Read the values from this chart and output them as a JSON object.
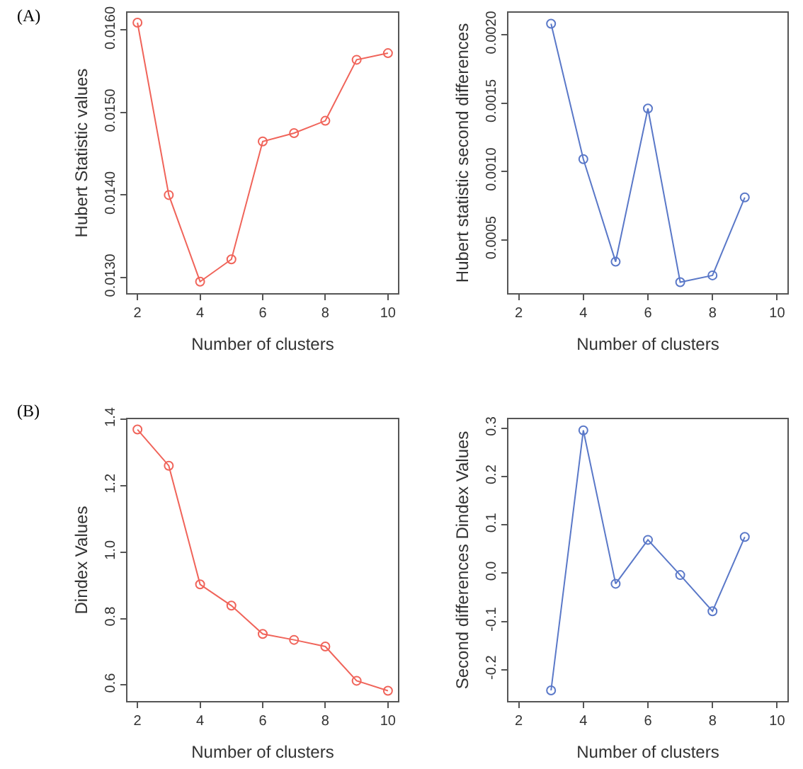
{
  "chart_data": [
    {
      "type": "line",
      "annotations": [
        "(A)"
      ],
      "xlabel": "Number of clusters",
      "ylabel": "Hubert Statistic values",
      "x": [
        2,
        3,
        4,
        5,
        6,
        7,
        8,
        9,
        10
      ],
      "xlim": [
        1.68,
        10.32
      ],
      "xticks": [
        2,
        4,
        6,
        8,
        10
      ],
      "ylim": [
        0.01281,
        0.01621
      ],
      "yticks": [
        {
          "value": 0.013,
          "label": "0.0130"
        },
        {
          "value": 0.014,
          "label": "0.0140"
        },
        {
          "value": 0.015,
          "label": "0.0150"
        },
        {
          "value": 0.016,
          "label": "0.0160"
        }
      ],
      "marker": "circle",
      "line_style": "solid",
      "grid": false,
      "series": [
        {
          "color": "#f0645a",
          "values": [
            0.01609,
            0.014,
            0.01295,
            0.01322,
            0.01465,
            0.01475,
            0.0149,
            0.01564,
            0.01572
          ]
        }
      ]
    },
    {
      "type": "line",
      "xlabel": "Number of clusters",
      "ylabel": "Hubert statistic second differences",
      "x": [
        3,
        4,
        5,
        6,
        7,
        8,
        9
      ],
      "xlim": [
        1.68,
        10.32
      ],
      "xticks": [
        2,
        4,
        6,
        8,
        10
      ],
      "ylim": [
        0.00011,
        0.00216
      ],
      "yticks": [
        0.0005,
        {
          "value": 0.001,
          "label": "0.0010"
        },
        0.0015,
        {
          "value": 0.002,
          "label": "0.0020"
        }
      ],
      "marker": "circle",
      "line_style": "solid",
      "grid": false,
      "series": [
        {
          "color": "#5a78c8",
          "values": [
            0.00208,
            0.00109,
            0.00034,
            0.00146,
            0.00019,
            0.00024,
            0.00081
          ]
        }
      ]
    },
    {
      "type": "line",
      "annotations": [
        "(B)"
      ],
      "xlabel": "Number of clusters",
      "ylabel": "Dindex Values",
      "x": [
        2,
        3,
        4,
        5,
        6,
        7,
        8,
        9,
        10
      ],
      "xlim": [
        1.68,
        10.32
      ],
      "xticks": [
        2,
        4,
        6,
        8,
        10
      ],
      "ylim": [
        0.552,
        1.4
      ],
      "yticks": [
        0.6,
        0.8,
        {
          "value": 1,
          "label": "1.0"
        },
        1.2,
        1.4
      ],
      "marker": "circle",
      "line_style": "solid",
      "grid": false,
      "series": [
        {
          "color": "#f0645a",
          "values": [
            1.369,
            1.26,
            0.903,
            0.839,
            0.754,
            0.736,
            0.716,
            0.613,
            0.583
          ]
        }
      ]
    },
    {
      "type": "line",
      "xlabel": "Number of clusters",
      "ylabel": "Second differences Dindex Values",
      "x": [
        3,
        4,
        5,
        6,
        7,
        8,
        9
      ],
      "xlim": [
        1.68,
        10.32
      ],
      "xticks": [
        2,
        4,
        6,
        8,
        10
      ],
      "ylim": [
        -0.265,
        0.319
      ],
      "yticks": [
        -0.2,
        -0.1,
        {
          "value": 0,
          "label": "0.0"
        },
        0.1,
        0.2,
        0.3
      ],
      "marker": "circle",
      "line_style": "solid",
      "grid": false,
      "series": [
        {
          "color": "#5a78c8",
          "values": [
            -0.243,
            0.296,
            -0.022,
            0.069,
            -0.004,
            -0.079,
            0.075
          ]
        }
      ]
    }
  ]
}
